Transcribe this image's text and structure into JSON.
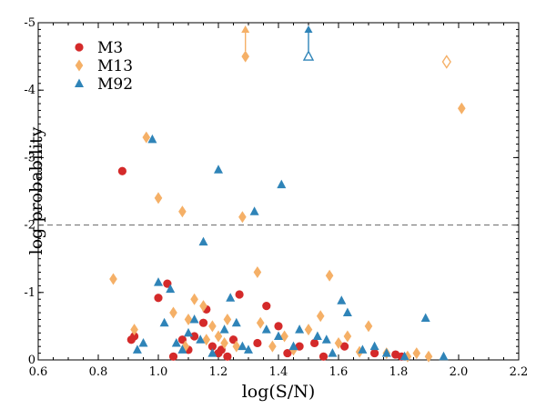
{
  "chart_data": {
    "type": "scatter",
    "title": "",
    "xlabel": "log(S/N)",
    "ylabel": "log probability",
    "xlim": [
      0.6,
      2.2
    ],
    "ylim": [
      0,
      -5
    ],
    "xticks": [
      "0.6",
      "0.8",
      "1.0",
      "1.2",
      "1.4",
      "1.6",
      "1.8",
      "2.0",
      "2.2"
    ],
    "yticks": [
      "0",
      "-1",
      "-2",
      "-3",
      "-4",
      "-5"
    ],
    "threshold": -2,
    "legend_position": "top-left",
    "colors": {
      "M3": "#d42a2a",
      "M13": "#f5b067",
      "M92": "#2f84b8"
    },
    "series": [
      {
        "name": "M3",
        "marker": "circle",
        "points": [
          [
            0.88,
            -2.8
          ],
          [
            0.91,
            -0.3
          ],
          [
            0.92,
            -0.35
          ],
          [
            1.0,
            -0.92
          ],
          [
            1.03,
            -1.13
          ],
          [
            1.05,
            -0.05
          ],
          [
            1.08,
            -0.3
          ],
          [
            1.1,
            -0.15
          ],
          [
            1.12,
            -0.35
          ],
          [
            1.15,
            -0.55
          ],
          [
            1.16,
            -0.75
          ],
          [
            1.18,
            -0.2
          ],
          [
            1.2,
            -0.1
          ],
          [
            1.21,
            -0.15
          ],
          [
            1.23,
            -0.05
          ],
          [
            1.25,
            -0.3
          ],
          [
            1.27,
            -0.97
          ],
          [
            1.33,
            -0.25
          ],
          [
            1.36,
            -0.8
          ],
          [
            1.4,
            -0.5
          ],
          [
            1.43,
            -0.1
          ],
          [
            1.47,
            -0.2
          ],
          [
            1.52,
            -0.25
          ],
          [
            1.55,
            -0.05
          ],
          [
            1.62,
            -0.2
          ],
          [
            1.72,
            -0.1
          ],
          [
            1.79,
            -0.08
          ],
          [
            1.81,
            -0.05
          ]
        ]
      },
      {
        "name": "M13",
        "marker": "diamond",
        "points": [
          [
            0.85,
            -1.2
          ],
          [
            0.92,
            -0.45
          ],
          [
            0.96,
            -3.3
          ],
          [
            1.0,
            -2.4
          ],
          [
            1.05,
            -0.7
          ],
          [
            1.08,
            -2.2
          ],
          [
            1.09,
            -0.2
          ],
          [
            1.1,
            -0.6
          ],
          [
            1.12,
            -0.9
          ],
          [
            1.15,
            -0.8
          ],
          [
            1.16,
            -0.3
          ],
          [
            1.18,
            -0.5
          ],
          [
            1.2,
            -0.35
          ],
          [
            1.22,
            -0.25
          ],
          [
            1.23,
            -0.6
          ],
          [
            1.26,
            -0.2
          ],
          [
            1.28,
            -2.12
          ],
          [
            1.29,
            -4.5
          ],
          [
            1.33,
            -1.3
          ],
          [
            1.34,
            -0.55
          ],
          [
            1.38,
            -0.2
          ],
          [
            1.42,
            -0.35
          ],
          [
            1.45,
            -0.15
          ],
          [
            1.5,
            -0.45
          ],
          [
            1.54,
            -0.65
          ],
          [
            1.57,
            -1.25
          ],
          [
            1.6,
            -0.25
          ],
          [
            1.63,
            -0.35
          ],
          [
            1.67,
            -0.12
          ],
          [
            1.7,
            -0.5
          ],
          [
            1.76,
            -0.1
          ],
          [
            1.83,
            -0.05
          ],
          [
            1.86,
            -0.1
          ],
          [
            1.9,
            -0.05
          ],
          [
            1.96,
            -4.42
          ],
          [
            2.01,
            -3.73
          ]
        ]
      },
      {
        "name": "M92",
        "marker": "triangle",
        "points": [
          [
            0.93,
            -0.15
          ],
          [
            0.95,
            -0.25
          ],
          [
            0.98,
            -3.27
          ],
          [
            1.0,
            -1.15
          ],
          [
            1.02,
            -0.55
          ],
          [
            1.04,
            -1.05
          ],
          [
            1.06,
            -0.25
          ],
          [
            1.08,
            -0.15
          ],
          [
            1.1,
            -0.4
          ],
          [
            1.12,
            -0.6
          ],
          [
            1.14,
            -0.3
          ],
          [
            1.15,
            -1.75
          ],
          [
            1.18,
            -0.1
          ],
          [
            1.2,
            -2.82
          ],
          [
            1.22,
            -0.45
          ],
          [
            1.24,
            -0.92
          ],
          [
            1.26,
            -0.55
          ],
          [
            1.28,
            -0.2
          ],
          [
            1.3,
            -0.15
          ],
          [
            1.32,
            -2.2
          ],
          [
            1.36,
            -0.45
          ],
          [
            1.4,
            -0.35
          ],
          [
            1.41,
            -2.6
          ],
          [
            1.45,
            -0.2
          ],
          [
            1.47,
            -0.45
          ],
          [
            1.5,
            -4.5
          ],
          [
            1.53,
            -0.35
          ],
          [
            1.56,
            -0.3
          ],
          [
            1.58,
            -0.1
          ],
          [
            1.61,
            -0.88
          ],
          [
            1.63,
            -0.7
          ],
          [
            1.68,
            -0.15
          ],
          [
            1.72,
            -0.2
          ],
          [
            1.76,
            -0.1
          ],
          [
            1.82,
            -0.05
          ],
          [
            1.89,
            -0.62
          ],
          [
            1.95,
            -0.05
          ]
        ]
      }
    ],
    "limit_markers": [
      {
        "series": "M13",
        "x": 1.29,
        "y": -4.5,
        "filled": true,
        "upper_arrow": true
      },
      {
        "series": "M92",
        "x": 1.5,
        "y": -4.5,
        "filled": false,
        "upper_arrow": true
      },
      {
        "series": "M13",
        "x": 1.96,
        "y": -4.42,
        "filled": false,
        "upper_arrow": false
      }
    ]
  }
}
